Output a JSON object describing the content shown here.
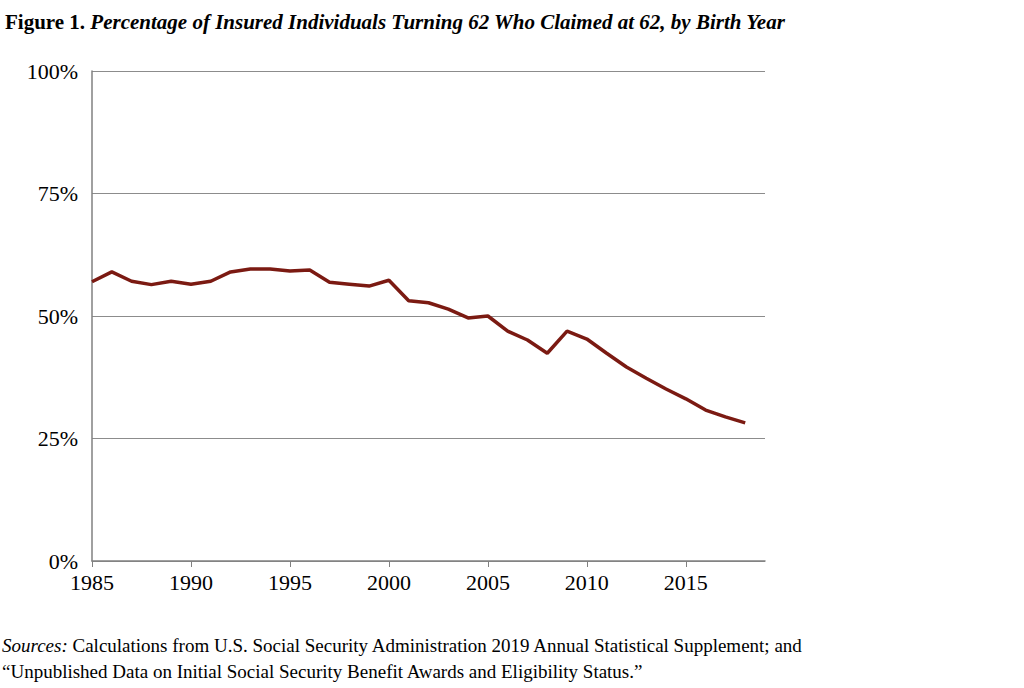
{
  "chart_data": {
    "type": "line",
    "title": "Figure 1. Percentage of Insured Individuals Turning 62 Who Claimed at 62, by Birth Year",
    "x": [
      1985,
      1986,
      1987,
      1988,
      1989,
      1990,
      1991,
      1992,
      1993,
      1994,
      1995,
      1996,
      1997,
      1998,
      1999,
      2000,
      2001,
      2002,
      2003,
      2004,
      2005,
      2006,
      2007,
      2008,
      2009,
      2010,
      2011,
      2012,
      2013,
      2014,
      2015,
      2016,
      2017,
      2018
    ],
    "values": [
      57,
      59,
      57.1,
      56.4,
      57.1,
      56.5,
      57.1,
      59,
      59.6,
      59.6,
      59.2,
      59.4,
      56.9,
      56.5,
      56.1,
      57.3,
      53.1,
      52.7,
      51.4,
      49.6,
      50,
      46.9,
      45.1,
      42.4,
      46.9,
      45.3,
      42.4,
      39.6,
      37.3,
      35.1,
      33.1,
      30.8,
      29.4,
      28.2
    ],
    "color": "#7b1a12",
    "xlim": [
      1985,
      2019
    ],
    "xticks": [
      1985,
      1990,
      1995,
      2000,
      2005,
      2010,
      2015
    ],
    "ylim": [
      0,
      100
    ],
    "yticks": [
      {
        "value": 0,
        "label": "0%"
      },
      {
        "value": 25,
        "label": "25%"
      },
      {
        "value": 50,
        "label": "50%"
      },
      {
        "value": 75,
        "label": "75%"
      },
      {
        "value": 100,
        "label": "100%"
      }
    ],
    "grid": true,
    "sources": [
      "Sources: Calculations from U.S. Social Security Administration 2019 Annual Statistical Supplement; and",
      "“Unpublished Data on Initial Social Security Benefit Awards and Eligibility Status.”"
    ]
  }
}
